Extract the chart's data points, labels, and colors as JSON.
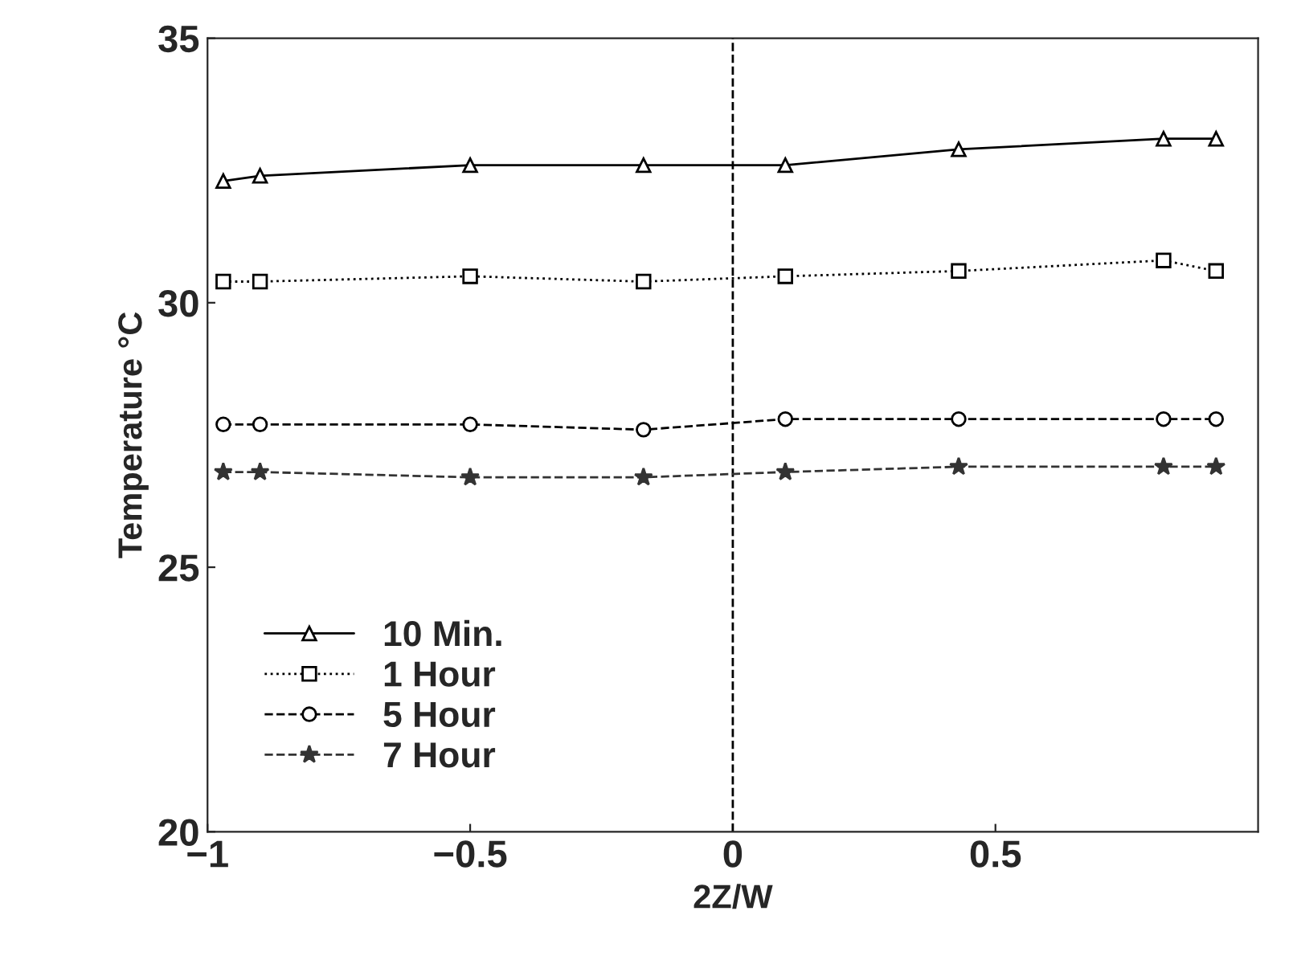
{
  "chart_data": {
    "type": "line",
    "xlabel": "2Z/W",
    "ylabel": "Temperature °C",
    "x": [
      -0.97,
      -0.9,
      -0.5,
      -0.17,
      0.1,
      0.43,
      0.82,
      0.92
    ],
    "series": [
      {
        "name": "10 Min.",
        "color": "#000000",
        "marker": "triangle",
        "line_style": "solid",
        "values": [
          32.3,
          32.4,
          32.6,
          32.6,
          32.6,
          32.9,
          33.1,
          33.1
        ]
      },
      {
        "name": "1 Hour",
        "color": "#000000",
        "marker": "square",
        "line_style": "dotted",
        "values": [
          30.4,
          30.4,
          30.5,
          30.4,
          30.5,
          30.6,
          30.8,
          30.6
        ]
      },
      {
        "name": "5 Hour",
        "color": "#000000",
        "marker": "circle",
        "line_style": "dashed",
        "values": [
          27.7,
          27.7,
          27.7,
          27.6,
          27.8,
          27.8,
          27.8,
          27.8
        ]
      },
      {
        "name": "7 Hour",
        "color": "#333333",
        "marker": "star",
        "line_style": "dashed",
        "values": [
          26.8,
          26.8,
          26.7,
          26.7,
          26.8,
          26.9,
          26.9,
          26.9
        ]
      }
    ],
    "xlim": [
      -1,
      1
    ],
    "xticks": [
      {
        "value": -1,
        "label": "−1"
      },
      {
        "value": -0.5,
        "label": "−0.5"
      },
      0,
      0.5
    ],
    "ylim": [
      20,
      35
    ],
    "yticks": [
      20,
      25,
      30,
      35
    ],
    "ref_lines": [
      {
        "axis": "x",
        "value": 0,
        "line_style": "dashed",
        "color": "#000000"
      }
    ],
    "legend": "bottom left"
  }
}
